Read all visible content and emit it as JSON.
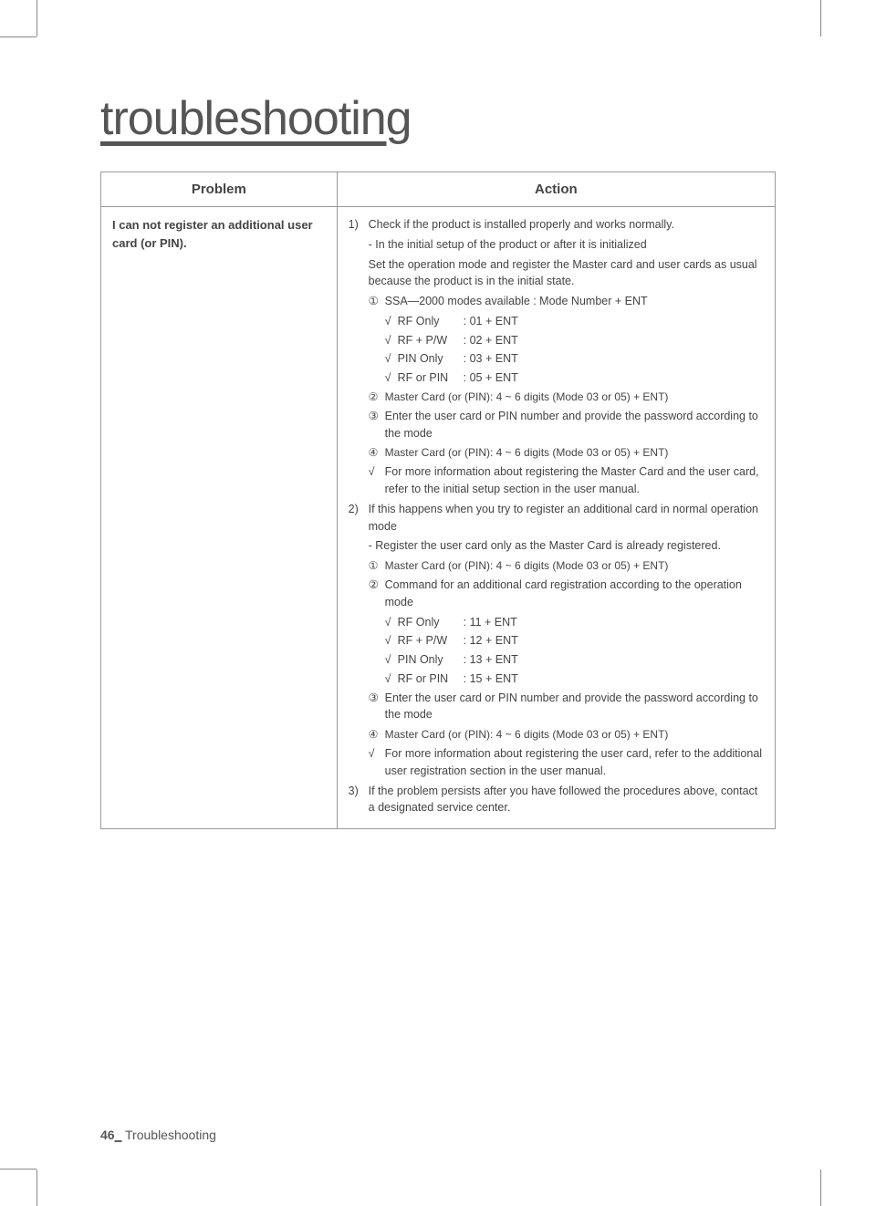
{
  "page": {
    "title": "troubleshooting",
    "footer_page_num": "46",
    "footer_underscore": "_",
    "footer_section": " Troubleshooting"
  },
  "table": {
    "headers": {
      "problem": "Problem",
      "action": "Action"
    },
    "row": {
      "problem": "I can not register an additional user card (or PIN).",
      "action": {
        "step1_num": "1)",
        "step1_text": "Check if the product is installed properly and works normally.",
        "step1_sub1": "- In the initial setup of the product or after it is initialized",
        "step1_sub2": "Set the operation mode and register the Master card and user cards as usual because the product is in the initial state.",
        "step1_c1_mark": "①",
        "step1_c1_text": "SSA—2000 modes available : Mode Number + ENT",
        "step1_chk1_mark": "√",
        "step1_chk1_label": "RF Only",
        "step1_chk1_val": ": 01 + ENT",
        "step1_chk2_mark": "√",
        "step1_chk2_label": "RF + P/W",
        "step1_chk2_val": ": 02 + ENT",
        "step1_chk3_mark": "√",
        "step1_chk3_label": "PIN Only",
        "step1_chk3_val": ": 03 + ENT",
        "step1_chk4_mark": "√",
        "step1_chk4_label": "RF or PIN",
        "step1_chk4_val": ": 05 + ENT",
        "step1_c2_mark": "②",
        "step1_c2_text": "Master Card (or (PIN): 4 ~ 6 digits (Mode 03 or 05) + ENT)",
        "step1_c3_mark": "③",
        "step1_c3_text": "Enter the user card or PIN number and provide the password according to the mode",
        "step1_c4_mark": "④",
        "step1_c4_text": "Master Card (or (PIN): 4 ~ 6 digits (Mode 03 or 05) + ENT)",
        "step1_note_mark": "√",
        "step1_note_text": "For more information about registering the Master Card and the user card, refer to the initial setup section in the user manual.",
        "step2_num": "2)",
        "step2_text": "If this happens when you try to register an additional card in normal operation mode",
        "step2_sub1": "- Register the user card only as the Master Card is already registered.",
        "step2_c1_mark": "①",
        "step2_c1_text": "Master Card (or (PIN): 4 ~ 6 digits (Mode 03 or 05) + ENT)",
        "step2_c2_mark": "②",
        "step2_c2_text": "Command for an additional card registration according to the operation mode",
        "step2_chk1_mark": "√",
        "step2_chk1_label": "RF Only",
        "step2_chk1_val": ": 11 + ENT",
        "step2_chk2_mark": "√",
        "step2_chk2_label": "RF + P/W",
        "step2_chk2_val": ": 12 + ENT",
        "step2_chk3_mark": "√",
        "step2_chk3_label": "PIN Only",
        "step2_chk3_val": ": 13 + ENT",
        "step2_chk4_mark": "√",
        "step2_chk4_label": "RF or PIN",
        "step2_chk4_val": ": 15 + ENT",
        "step2_c3_mark": "③",
        "step2_c3_text": "Enter the user card or PIN number and provide the password according to the mode",
        "step2_c4_mark": "④",
        "step2_c4_text": "Master Card (or (PIN): 4 ~ 6 digits (Mode 03 or 05) + ENT)",
        "step2_note_mark": "√",
        "step2_note_text": "For more information about registering the user card, refer to the additional user registration section in the user manual.",
        "step3_num": "3)",
        "step3_text": "If the problem persists after you have followed the procedures above, contact a designated service center."
      }
    }
  }
}
